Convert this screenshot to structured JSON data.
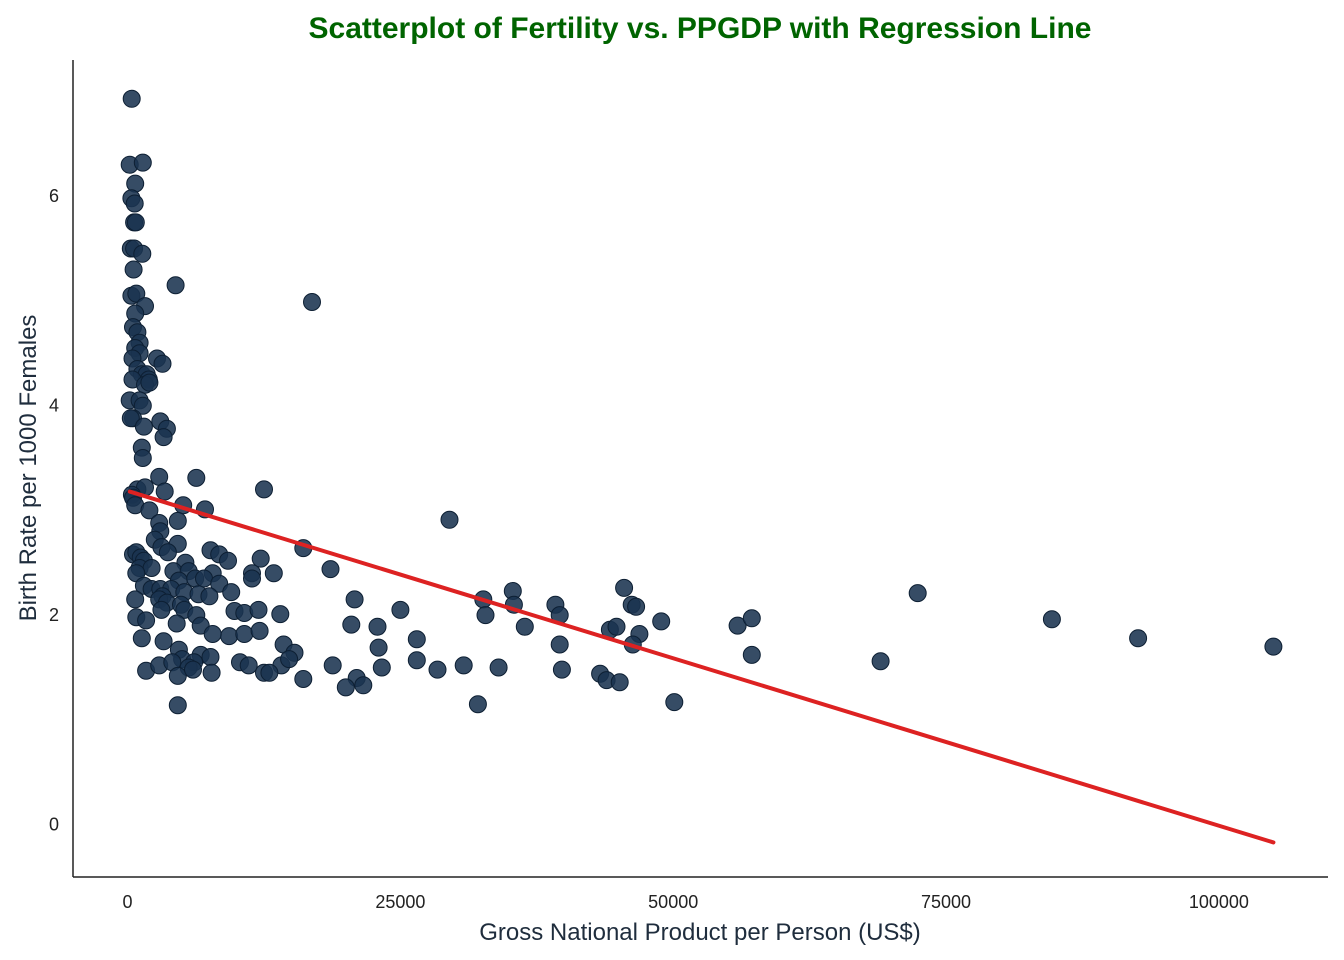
{
  "chart_data": {
    "type": "scatter",
    "title": "Scatterplot of Fertility vs. PPGDP with Regression Line",
    "xlabel": "Gross National Product per Person (US$)",
    "ylabel": "Birth Rate per 1000 Females",
    "xlim": [
      -5000,
      110000
    ],
    "ylim": [
      -0.5,
      7.3
    ],
    "xticks": [
      0,
      25000,
      50000,
      75000,
      100000
    ],
    "xtick_labels": [
      "0",
      "25000",
      "50000",
      "75000",
      "100000"
    ],
    "yticks": [
      0,
      2,
      4,
      6
    ],
    "ytick_labels": [
      "0",
      "2",
      "4",
      "6"
    ],
    "grid": false,
    "colors": {
      "title": "#006400",
      "points": "#1a3350",
      "point_edge": "#0d1f33",
      "regression_line": "#dd2222",
      "axis": "#222222"
    },
    "regression_line": {
      "x": [
        200,
        105000
      ],
      "y": [
        3.18,
        -0.17
      ]
    },
    "points": [
      [
        380,
        6.93
      ],
      [
        200,
        6.3
      ],
      [
        1400,
        6.32
      ],
      [
        700,
        6.12
      ],
      [
        350,
        5.98
      ],
      [
        650,
        5.93
      ],
      [
        600,
        5.75
      ],
      [
        750,
        5.75
      ],
      [
        300,
        5.5
      ],
      [
        600,
        5.5
      ],
      [
        1350,
        5.45
      ],
      [
        550,
        5.3
      ],
      [
        350,
        5.05
      ],
      [
        800,
        5.07
      ],
      [
        1600,
        4.95
      ],
      [
        4400,
        5.15
      ],
      [
        16900,
        4.99
      ],
      [
        700,
        4.88
      ],
      [
        500,
        4.75
      ],
      [
        900,
        4.7
      ],
      [
        1100,
        4.6
      ],
      [
        700,
        4.55
      ],
      [
        1100,
        4.5
      ],
      [
        450,
        4.45
      ],
      [
        900,
        4.35
      ],
      [
        2700,
        4.45
      ],
      [
        3200,
        4.4
      ],
      [
        1300,
        4.3
      ],
      [
        1750,
        4.3
      ],
      [
        1950,
        4.25
      ],
      [
        450,
        4.25
      ],
      [
        1600,
        4.2
      ],
      [
        2000,
        4.22
      ],
      [
        200,
        4.05
      ],
      [
        1100,
        4.05
      ],
      [
        1400,
        4.0
      ],
      [
        500,
        3.88
      ],
      [
        300,
        3.88
      ],
      [
        1500,
        3.8
      ],
      [
        3000,
        3.85
      ],
      [
        3600,
        3.78
      ],
      [
        3300,
        3.7
      ],
      [
        1300,
        3.6
      ],
      [
        1400,
        3.5
      ],
      [
        2900,
        3.32
      ],
      [
        6300,
        3.31
      ],
      [
        12500,
        3.2
      ],
      [
        900,
        3.2
      ],
      [
        1600,
        3.22
      ],
      [
        3400,
        3.18
      ],
      [
        400,
        3.15
      ],
      [
        500,
        3.12
      ],
      [
        700,
        3.05
      ],
      [
        2000,
        3.0
      ],
      [
        5100,
        3.05
      ],
      [
        7100,
        3.01
      ],
      [
        29500,
        2.91
      ],
      [
        4600,
        2.9
      ],
      [
        2900,
        2.88
      ],
      [
        3000,
        2.8
      ],
      [
        2500,
        2.72
      ],
      [
        4600,
        2.68
      ],
      [
        3100,
        2.65
      ],
      [
        3700,
        2.6
      ],
      [
        7600,
        2.62
      ],
      [
        16100,
        2.64
      ],
      [
        8400,
        2.58
      ],
      [
        500,
        2.58
      ],
      [
        800,
        2.6
      ],
      [
        1200,
        2.55
      ],
      [
        1500,
        2.52
      ],
      [
        9200,
        2.52
      ],
      [
        12200,
        2.54
      ],
      [
        5300,
        2.5
      ],
      [
        1100,
        2.45
      ],
      [
        2200,
        2.45
      ],
      [
        4200,
        2.42
      ],
      [
        5600,
        2.42
      ],
      [
        7800,
        2.4
      ],
      [
        11400,
        2.4
      ],
      [
        13400,
        2.4
      ],
      [
        18600,
        2.44
      ],
      [
        800,
        2.4
      ],
      [
        4700,
        2.33
      ],
      [
        6200,
        2.35
      ],
      [
        7000,
        2.35
      ],
      [
        8400,
        2.3
      ],
      [
        11400,
        2.35
      ],
      [
        1500,
        2.28
      ],
      [
        2200,
        2.25
      ],
      [
        3000,
        2.25
      ],
      [
        4000,
        2.25
      ],
      [
        5200,
        2.22
      ],
      [
        9500,
        2.22
      ],
      [
        6500,
        2.2
      ],
      [
        7500,
        2.18
      ],
      [
        3200,
        2.18
      ],
      [
        700,
        2.15
      ],
      [
        2900,
        2.15
      ],
      [
        3600,
        2.12
      ],
      [
        4900,
        2.1
      ],
      [
        20800,
        2.15
      ],
      [
        32600,
        2.15
      ],
      [
        35300,
        2.23
      ],
      [
        39200,
        2.1
      ],
      [
        45500,
        2.26
      ],
      [
        46200,
        2.1
      ],
      [
        46600,
        2.08
      ],
      [
        35400,
        2.1
      ],
      [
        72400,
        2.21
      ],
      [
        3100,
        2.05
      ],
      [
        5200,
        2.05
      ],
      [
        9800,
        2.04
      ],
      [
        10700,
        2.02
      ],
      [
        12000,
        2.05
      ],
      [
        14000,
        2.01
      ],
      [
        25000,
        2.05
      ],
      [
        32800,
        2.0
      ],
      [
        39600,
        2.0
      ],
      [
        800,
        1.98
      ],
      [
        1700,
        1.95
      ],
      [
        6300,
        2.0
      ],
      [
        4500,
        1.92
      ],
      [
        20500,
        1.91
      ],
      [
        22900,
        1.89
      ],
      [
        36400,
        1.89
      ],
      [
        44200,
        1.86
      ],
      [
        44800,
        1.89
      ],
      [
        48900,
        1.94
      ],
      [
        55900,
        1.9
      ],
      [
        57200,
        1.97
      ],
      [
        84700,
        1.96
      ],
      [
        6700,
        1.9
      ],
      [
        9300,
        1.8
      ],
      [
        10700,
        1.82
      ],
      [
        12100,
        1.85
      ],
      [
        7800,
        1.82
      ],
      [
        46900,
        1.82
      ],
      [
        92600,
        1.78
      ],
      [
        105000,
        1.7
      ],
      [
        1300,
        1.78
      ],
      [
        3300,
        1.75
      ],
      [
        14300,
        1.72
      ],
      [
        26500,
        1.77
      ],
      [
        39600,
        1.72
      ],
      [
        46300,
        1.72
      ],
      [
        4700,
        1.67
      ],
      [
        6700,
        1.62
      ],
      [
        7600,
        1.6
      ],
      [
        15300,
        1.64
      ],
      [
        23000,
        1.69
      ],
      [
        57200,
        1.62
      ],
      [
        5000,
        1.58
      ],
      [
        6100,
        1.55
      ],
      [
        10300,
        1.55
      ],
      [
        11100,
        1.52
      ],
      [
        14100,
        1.52
      ],
      [
        14800,
        1.58
      ],
      [
        18800,
        1.52
      ],
      [
        26500,
        1.57
      ],
      [
        30800,
        1.52
      ],
      [
        34000,
        1.5
      ],
      [
        69000,
        1.56
      ],
      [
        1700,
        1.47
      ],
      [
        2900,
        1.52
      ],
      [
        4100,
        1.55
      ],
      [
        5600,
        1.5
      ],
      [
        7700,
        1.45
      ],
      [
        12500,
        1.45
      ],
      [
        13000,
        1.45
      ],
      [
        23300,
        1.5
      ],
      [
        28400,
        1.48
      ],
      [
        39800,
        1.48
      ],
      [
        43300,
        1.44
      ],
      [
        4600,
        1.42
      ],
      [
        6000,
        1.48
      ],
      [
        16100,
        1.39
      ],
      [
        21000,
        1.4
      ],
      [
        43900,
        1.38
      ],
      [
        45100,
        1.36
      ],
      [
        20000,
        1.31
      ],
      [
        21600,
        1.33
      ],
      [
        32100,
        1.15
      ],
      [
        50100,
        1.17
      ],
      [
        4600,
        1.14
      ]
    ]
  }
}
